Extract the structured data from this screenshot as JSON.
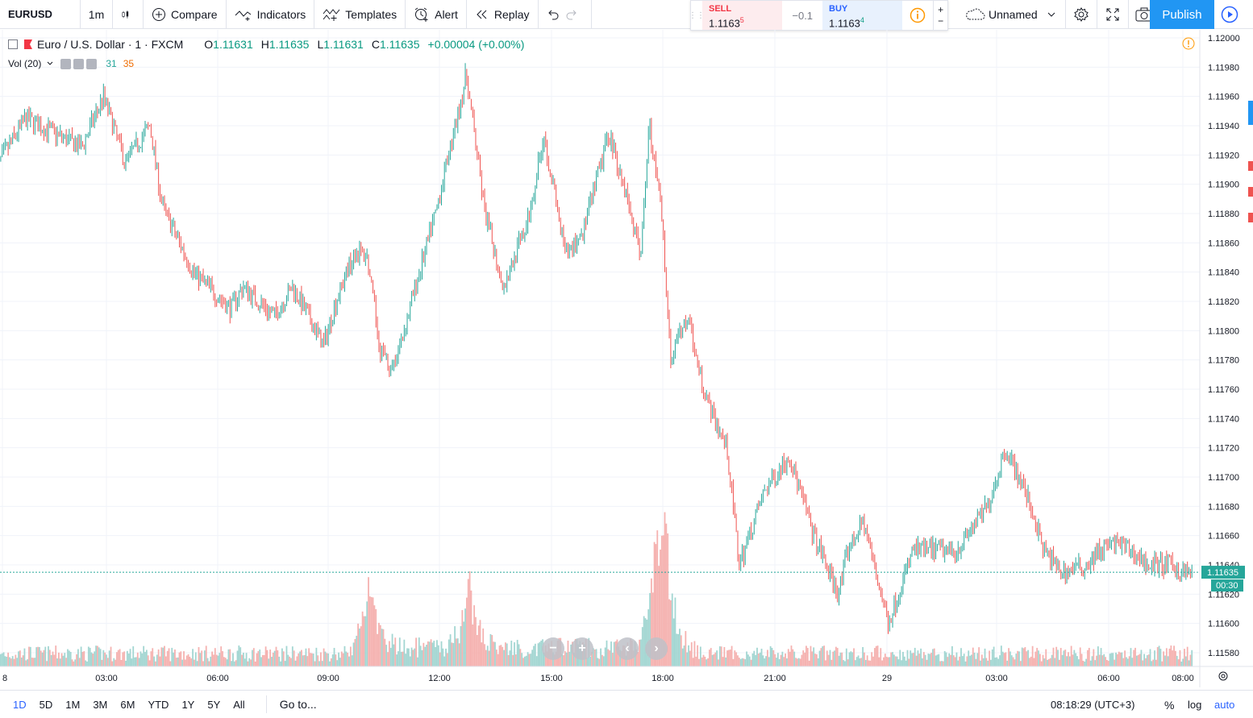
{
  "toolbar": {
    "symbol": "EURUSD",
    "interval": "1m",
    "compare_label": "Compare",
    "indicators_label": "Indicators",
    "templates_label": "Templates",
    "alert_label": "Alert",
    "replay_label": "Replay",
    "layout_name": "Unnamed",
    "publish_label": "Publish"
  },
  "trade_panel": {
    "sell_label": "SELL",
    "sell_price_main": "1.1163",
    "sell_price_sup": "5",
    "spread": "−0.1",
    "buy_label": "BUY",
    "buy_price_main": "1.1163",
    "buy_price_sup": "4",
    "qty_plus": "+",
    "qty_minus": "−"
  },
  "legend": {
    "title": "Euro / U.S. Dollar · 1 · FXCM",
    "o_label": "O",
    "o_value": "1.11631",
    "h_label": "H",
    "h_value": "1.11635",
    "l_label": "L",
    "l_value": "1.11631",
    "c_label": "C",
    "c_value": "1.11635",
    "change": "+0.00004 (+0.00%)",
    "volume_label": "Vol (20)",
    "volume_value_a": "31",
    "volume_value_b": "35"
  },
  "colors": {
    "up": "#26a69a",
    "down": "#ef5350",
    "vol_up": "#a3d6d2",
    "vol_down": "#f5b2b0",
    "last_price": "#26a69a",
    "accent": "#2962ff",
    "publish": "#2196f3"
  },
  "chart_data": {
    "type": "candlestick",
    "title": "",
    "xlabel": "",
    "ylabel": "",
    "ylim": [
      1.1157,
      1.12
    ],
    "y_ticks": [
      "1.12000",
      "1.11980",
      "1.11960",
      "1.11940",
      "1.11920",
      "1.11900",
      "1.11880",
      "1.11860",
      "1.11840",
      "1.11820",
      "1.11800",
      "1.11780",
      "1.11760",
      "1.11740",
      "1.11720",
      "1.11700",
      "1.11680",
      "1.11660",
      "1.11640",
      "1.11620",
      "1.11600",
      "1.11580"
    ],
    "x_ticks": [
      "8",
      "03:00",
      "06:00",
      "09:00",
      "12:00",
      "15:00",
      "18:00",
      "21:00",
      "29",
      "03:00",
      "06:00",
      "08:00"
    ],
    "last_price": "1.11635",
    "countdown": "00:30",
    "series_keypoints": {
      "x": [
        "00:00",
        "00:50",
        "02:20",
        "02:55",
        "03:30",
        "04:10",
        "04:30",
        "05:20",
        "06:20",
        "06:40",
        "07:30",
        "08:00",
        "08:50",
        "09:10",
        "09:40",
        "10:00",
        "10:20",
        "10:40",
        "11:15",
        "11:50",
        "12:20",
        "12:40",
        "13:10",
        "13:40",
        "14:20",
        "14:45",
        "15:20",
        "15:50",
        "16:30",
        "17:00",
        "17:20",
        "17:35",
        "17:55",
        "18:10",
        "18:40",
        "18:45",
        "19:10",
        "19:40",
        "20:00",
        "20:40",
        "21:20",
        "22:00",
        "22:40",
        "22:55",
        "23:20",
        "00:00",
        "00:40",
        "01:10",
        "01:50",
        "02:40",
        "03:10",
        "03:50",
        "04:10",
        "04:40",
        "05:20",
        "05:40",
        "06:10",
        "07:00",
        "07:30",
        "08:00",
        "08:10"
      ],
      "y": [
        1.1191,
        1.11945,
        1.11925,
        1.1196,
        1.11915,
        1.1194,
        1.11885,
        1.1184,
        1.11815,
        1.1183,
        1.1181,
        1.1183,
        1.1179,
        1.1182,
        1.11855,
        1.1185,
        1.1179,
        1.1177,
        1.11825,
        1.1188,
        1.11935,
        1.11975,
        1.1188,
        1.1183,
        1.11875,
        1.11935,
        1.1185,
        1.1187,
        1.11935,
        1.1189,
        1.1185,
        1.1194,
        1.1188,
        1.1178,
        1.11815,
        1.1179,
        1.1175,
        1.1172,
        1.1164,
        1.1169,
        1.11715,
        1.1166,
        1.1162,
        1.1165,
        1.1167,
        1.116,
        1.1165,
        1.1165,
        1.1165,
        1.1168,
        1.1172,
        1.1168,
        1.1165,
        1.11635,
        1.1164,
        1.1165,
        1.11655,
        1.1164,
        1.1164,
        1.11635,
        1.11635
      ]
    },
    "volume_peaks": [
      {
        "x": "10:05",
        "value": "high"
      },
      {
        "x": "12:45",
        "value": "high"
      },
      {
        "x": "17:45",
        "value": "high"
      },
      {
        "x": "18:00",
        "value": "highest"
      }
    ]
  },
  "nav": {
    "zoom_out": "−",
    "zoom_in": "+",
    "scroll_left": "‹",
    "scroll_right": "›"
  },
  "bottom": {
    "ranges": [
      "1D",
      "5D",
      "1M",
      "3M",
      "6M",
      "YTD",
      "1Y",
      "5Y",
      "All"
    ],
    "active_range": "1D",
    "goto_label": "Go to...",
    "clock": "08:18:29 (UTC+3)",
    "percent_label": "%",
    "log_label": "log",
    "auto_label": "auto"
  }
}
